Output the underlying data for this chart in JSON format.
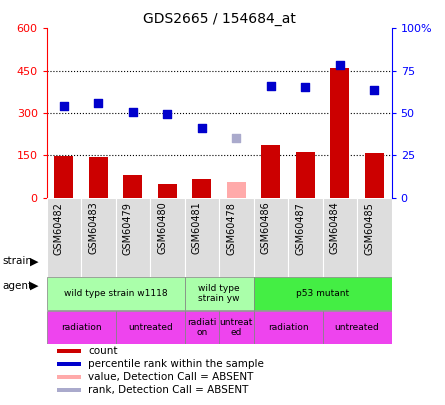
{
  "title": "GDS2665 / 154684_at",
  "samples": [
    "GSM60482",
    "GSM60483",
    "GSM60479",
    "GSM60480",
    "GSM60481",
    "GSM60478",
    "GSM60486",
    "GSM60487",
    "GSM60484",
    "GSM60485"
  ],
  "count_values": [
    148,
    145,
    80,
    50,
    65,
    null,
    185,
    163,
    460,
    160
  ],
  "count_absent": [
    null,
    null,
    null,
    null,
    null,
    55,
    null,
    null,
    null,
    null
  ],
  "rank_values": [
    325,
    335,
    305,
    298,
    248,
    null,
    395,
    393,
    470,
    380
  ],
  "rank_absent": [
    null,
    null,
    null,
    null,
    null,
    210,
    null,
    null,
    null,
    null
  ],
  "bar_color": "#cc0000",
  "bar_absent_color": "#ffaaaa",
  "dot_color": "#0000cc",
  "dot_absent_color": "#aaaacc",
  "left_ylim": [
    0,
    600
  ],
  "right_ylim": [
    0,
    600
  ],
  "left_yticks": [
    0,
    150,
    300,
    450,
    600
  ],
  "left_yticklabels": [
    "0",
    "150",
    "300",
    "450",
    "600"
  ],
  "right_yticks": [
    0,
    150,
    300,
    450,
    600
  ],
  "right_yticklabels": [
    "0",
    "25",
    "50",
    "75",
    "100%"
  ],
  "gridlines": [
    150,
    300,
    450
  ],
  "strain_groups": [
    {
      "label": "wild type strain w1118",
      "start": 0,
      "end": 4,
      "color": "#aaffaa"
    },
    {
      "label": "wild type\nstrain yw",
      "start": 4,
      "end": 6,
      "color": "#aaffaa"
    },
    {
      "label": "p53 mutant",
      "start": 6,
      "end": 10,
      "color": "#44ee44"
    }
  ],
  "agent_groups": [
    {
      "label": "radiation",
      "start": 0,
      "end": 2,
      "color": "#ee44ee"
    },
    {
      "label": "untreated",
      "start": 2,
      "end": 4,
      "color": "#ee44ee"
    },
    {
      "label": "radiati\non",
      "start": 4,
      "end": 5,
      "color": "#ee44ee"
    },
    {
      "label": "untreat\ned",
      "start": 5,
      "end": 6,
      "color": "#ee44ee"
    },
    {
      "label": "radiation",
      "start": 6,
      "end": 8,
      "color": "#ee44ee"
    },
    {
      "label": "untreated",
      "start": 8,
      "end": 10,
      "color": "#ee44ee"
    }
  ],
  "legend_items": [
    {
      "color": "#cc0000",
      "label": "count",
      "marker": "square"
    },
    {
      "color": "#0000cc",
      "label": "percentile rank within the sample",
      "marker": "square"
    },
    {
      "color": "#ffaaaa",
      "label": "value, Detection Call = ABSENT",
      "marker": "square"
    },
    {
      "color": "#aaaacc",
      "label": "rank, Detection Call = ABSENT",
      "marker": "square"
    }
  ],
  "bar_width": 0.55,
  "dot_size": 35,
  "plot_bg": "#ffffff",
  "title_fontsize": 10,
  "tick_bg": "#dddddd"
}
